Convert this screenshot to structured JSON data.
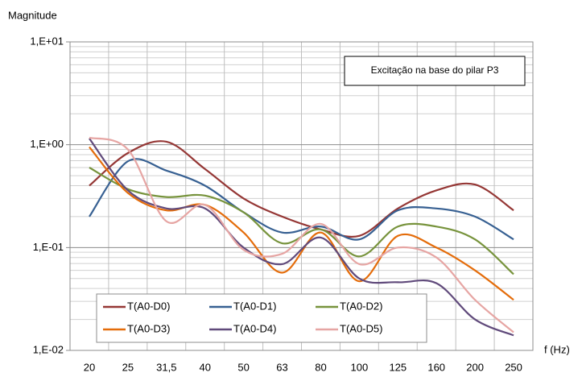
{
  "chart_data": {
    "type": "line",
    "y_label": "Magnitude",
    "x_label": "f (Hz)",
    "annotation": "Excitação na base do pilar P3",
    "categories": [
      "20",
      "25",
      "31,5",
      "40",
      "50",
      "63",
      "80",
      "100",
      "125",
      "160",
      "200",
      "250"
    ],
    "log_y": true,
    "grid": true,
    "ylim": [
      0.01,
      10
    ],
    "yticks": [
      {
        "value": 0.01,
        "label": "1,E-02"
      },
      {
        "value": 0.1,
        "label": "1,E-01"
      },
      {
        "value": 1,
        "label": "1,E+00"
      },
      {
        "value": 10,
        "label": "1,E+01"
      }
    ],
    "legend": "bottom-left",
    "series": [
      {
        "name": "T(A0-D0)",
        "color": "#953735",
        "values": [
          0.4,
          0.83,
          1.07,
          0.58,
          0.3,
          0.2,
          0.15,
          0.13,
          0.24,
          0.36,
          0.41,
          0.23
        ]
      },
      {
        "name": "T(A0-D1)",
        "color": "#376092",
        "values": [
          0.2,
          0.69,
          0.56,
          0.4,
          0.22,
          0.14,
          0.16,
          0.12,
          0.23,
          0.24,
          0.2,
          0.12
        ]
      },
      {
        "name": "T(A0-D2)",
        "color": "#77933c",
        "values": [
          0.6,
          0.37,
          0.31,
          0.32,
          0.22,
          0.11,
          0.15,
          0.082,
          0.16,
          0.16,
          0.12,
          0.055
        ]
      },
      {
        "name": "T(A0-D3)",
        "color": "#e46c0a",
        "values": [
          0.95,
          0.34,
          0.23,
          0.26,
          0.14,
          0.057,
          0.14,
          0.047,
          0.13,
          0.1,
          0.06,
          0.031
        ]
      },
      {
        "name": "T(A0-D4)",
        "color": "#604a7b",
        "values": [
          1.15,
          0.36,
          0.24,
          0.24,
          0.1,
          0.069,
          0.125,
          0.05,
          0.046,
          0.045,
          0.02,
          0.014
        ]
      },
      {
        "name": "T(A0-D5)",
        "color": "#e6a5a3",
        "values": [
          1.17,
          0.9,
          0.18,
          0.26,
          0.095,
          0.087,
          0.17,
          0.069,
          0.1,
          0.08,
          0.031,
          0.015
        ]
      }
    ]
  }
}
